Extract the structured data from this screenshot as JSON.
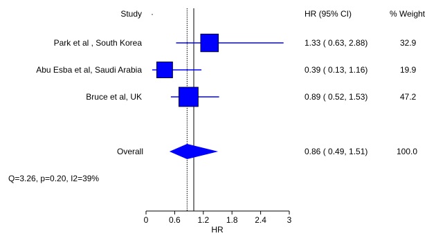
{
  "chart_data": {
    "type": "forest",
    "headers": {
      "study": "Study",
      "hr_ci": "HR (95% CI)",
      "weight": "% Weight"
    },
    "studies": [
      {
        "label": "Park et al , South Korea",
        "hr": 1.33,
        "lo": 0.63,
        "hi": 2.88,
        "hr_text": "1.33",
        "lo_text": "0.63",
        "hi_text": "2.88",
        "weight": 32.9,
        "weight_text": "32.9"
      },
      {
        "label": "Abu Esba et al, Saudi Arabia",
        "hr": 0.39,
        "lo": 0.13,
        "hi": 1.16,
        "hr_text": "0.39",
        "lo_text": "0.13",
        "hi_text": "1.16",
        "weight": 19.9,
        "weight_text": "19.9"
      },
      {
        "label": "Bruce et al, UK",
        "hr": 0.89,
        "lo": 0.52,
        "hi": 1.53,
        "hr_text": "0.89",
        "lo_text": "0.52",
        "hi_text": "1.53",
        "weight": 47.2,
        "weight_text": "47.2"
      }
    ],
    "overall": {
      "label": "Overall",
      "hr": 0.86,
      "lo": 0.49,
      "hi": 1.51,
      "hr_text": "0.86",
      "lo_text": "0.49",
      "hi_text": "1.51",
      "weight_text": "100.0"
    },
    "heterogeneity": "Q=3.26, p=0.20, I2=39%",
    "x_axis": {
      "label": "HR",
      "min": 0,
      "max": 3,
      "ticks": [
        0,
        0.6,
        1.2,
        1.8,
        2.4,
        3
      ],
      "tick_labels": [
        "0",
        "0.6",
        "1.2",
        "1.8",
        "2.4",
        "3"
      ]
    },
    "null_line": 1,
    "colors": {
      "marker": "#0000ff",
      "line": "#0000ff",
      "axis": "#000000"
    }
  }
}
